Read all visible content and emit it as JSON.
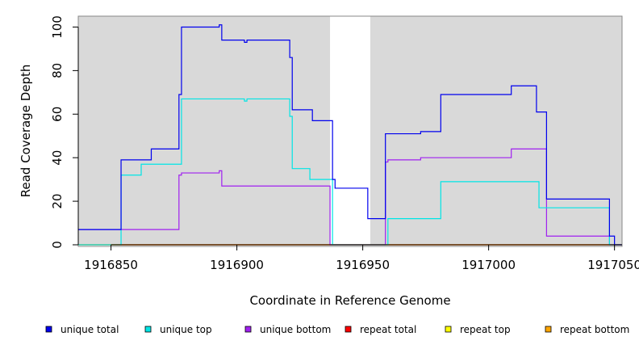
{
  "chart_data": {
    "type": "line",
    "xlabel": "Coordinate in Reference Genome",
    "ylabel": "Read Coverage Depth",
    "xlim": [
      1916837,
      1917053
    ],
    "ylim": [
      0,
      105
    ],
    "x_ticks": [
      1916850,
      1916900,
      1916950,
      1917000,
      1917050
    ],
    "x_tick_labels": [
      "1916850",
      "1916900",
      "1916950",
      "1917000",
      "1917050"
    ],
    "y_ticks": [
      0,
      20,
      40,
      60,
      80,
      100
    ],
    "y_tick_labels": [
      "0",
      "20",
      "40",
      "60",
      "80",
      "100"
    ],
    "shaded_regions": [
      [
        1916837,
        1916937
      ],
      [
        1916953,
        1917053
      ]
    ],
    "shade_color": "#d9d9d9",
    "series": [
      {
        "name": "unique total",
        "color": "#0000ee",
        "x": [
          1916837,
          1916854,
          1916854,
          1916866,
          1916866,
          1916877,
          1916877,
          1916878,
          1916878,
          1916893,
          1916893,
          1916894,
          1916894,
          1916903,
          1916903,
          1916904,
          1916904,
          1916921,
          1916921,
          1916922,
          1916922,
          1916926,
          1916926,
          1916930,
          1916930,
          1916938,
          1916938,
          1916939,
          1916939,
          1916952,
          1916952,
          1916955,
          1916955,
          1916959,
          1916959,
          1916963,
          1916963,
          1916973,
          1916973,
          1916981,
          1916981,
          1917009,
          1917009,
          1917019,
          1917019,
          1917023,
          1917023,
          1917048,
          1917048,
          1917050,
          1917050,
          1917053
        ],
        "y": [
          7,
          7,
          39,
          39,
          44,
          44,
          69,
          69,
          100,
          100,
          101,
          101,
          94,
          94,
          93,
          93,
          94,
          94,
          86,
          86,
          62,
          62,
          62,
          62,
          57,
          57,
          30,
          30,
          26,
          26,
          12,
          12,
          12,
          12,
          51,
          51,
          51,
          51,
          52,
          52,
          69,
          69,
          73,
          73,
          61,
          61,
          21,
          21,
          4,
          4,
          0,
          0
        ]
      },
      {
        "name": "unique top",
        "color": "#00e5e5",
        "x": [
          1916837,
          1916854,
          1916854,
          1916862,
          1916862,
          1916878,
          1916878,
          1916903,
          1916903,
          1916904,
          1916904,
          1916921,
          1916921,
          1916922,
          1916922,
          1916926,
          1916926,
          1916929,
          1916929,
          1916938,
          1916938,
          1916960,
          1916960,
          1916981,
          1916981,
          1917020,
          1917020,
          1917048,
          1917048,
          1917053
        ],
        "y": [
          0,
          0,
          32,
          32,
          37,
          37,
          67,
          67,
          66,
          66,
          67,
          67,
          59,
          59,
          35,
          35,
          35,
          35,
          30,
          30,
          0,
          0,
          12,
          12,
          29,
          29,
          17,
          17,
          0,
          0
        ]
      },
      {
        "name": "unique bottom",
        "color": "#a020f0",
        "x": [
          1916837,
          1916877,
          1916877,
          1916878,
          1916878,
          1916893,
          1916893,
          1916894,
          1916894,
          1916937,
          1916937,
          1916959,
          1916959,
          1916960,
          1916960,
          1916973,
          1916973,
          1917009,
          1917009,
          1917023,
          1917023,
          1917048,
          1917048,
          1917053
        ],
        "y": [
          7,
          7,
          32,
          32,
          33,
          33,
          34,
          34,
          27,
          27,
          0,
          0,
          38,
          38,
          39,
          39,
          40,
          40,
          44,
          44,
          4,
          4,
          0,
          0
        ]
      },
      {
        "name": "repeat total",
        "color": "#ff0000",
        "x": [
          1916837,
          1917053
        ],
        "y": [
          0,
          0
        ]
      },
      {
        "name": "repeat top",
        "color": "#ffff00",
        "x": [
          1916837,
          1917053
        ],
        "y": [
          0,
          0
        ]
      },
      {
        "name": "repeat bottom",
        "color": "#ffa500",
        "x": [
          1916837,
          1917053
        ],
        "y": [
          0,
          0
        ]
      }
    ]
  },
  "legend": [
    {
      "label": "unique total",
      "color": "#0000ee"
    },
    {
      "label": "unique top",
      "color": "#00e5e5"
    },
    {
      "label": "unique bottom",
      "color": "#a020f0"
    },
    {
      "label": "repeat total",
      "color": "#ff0000"
    },
    {
      "label": "repeat top",
      "color": "#ffff00"
    },
    {
      "label": "repeat bottom",
      "color": "#ffa500"
    }
  ]
}
